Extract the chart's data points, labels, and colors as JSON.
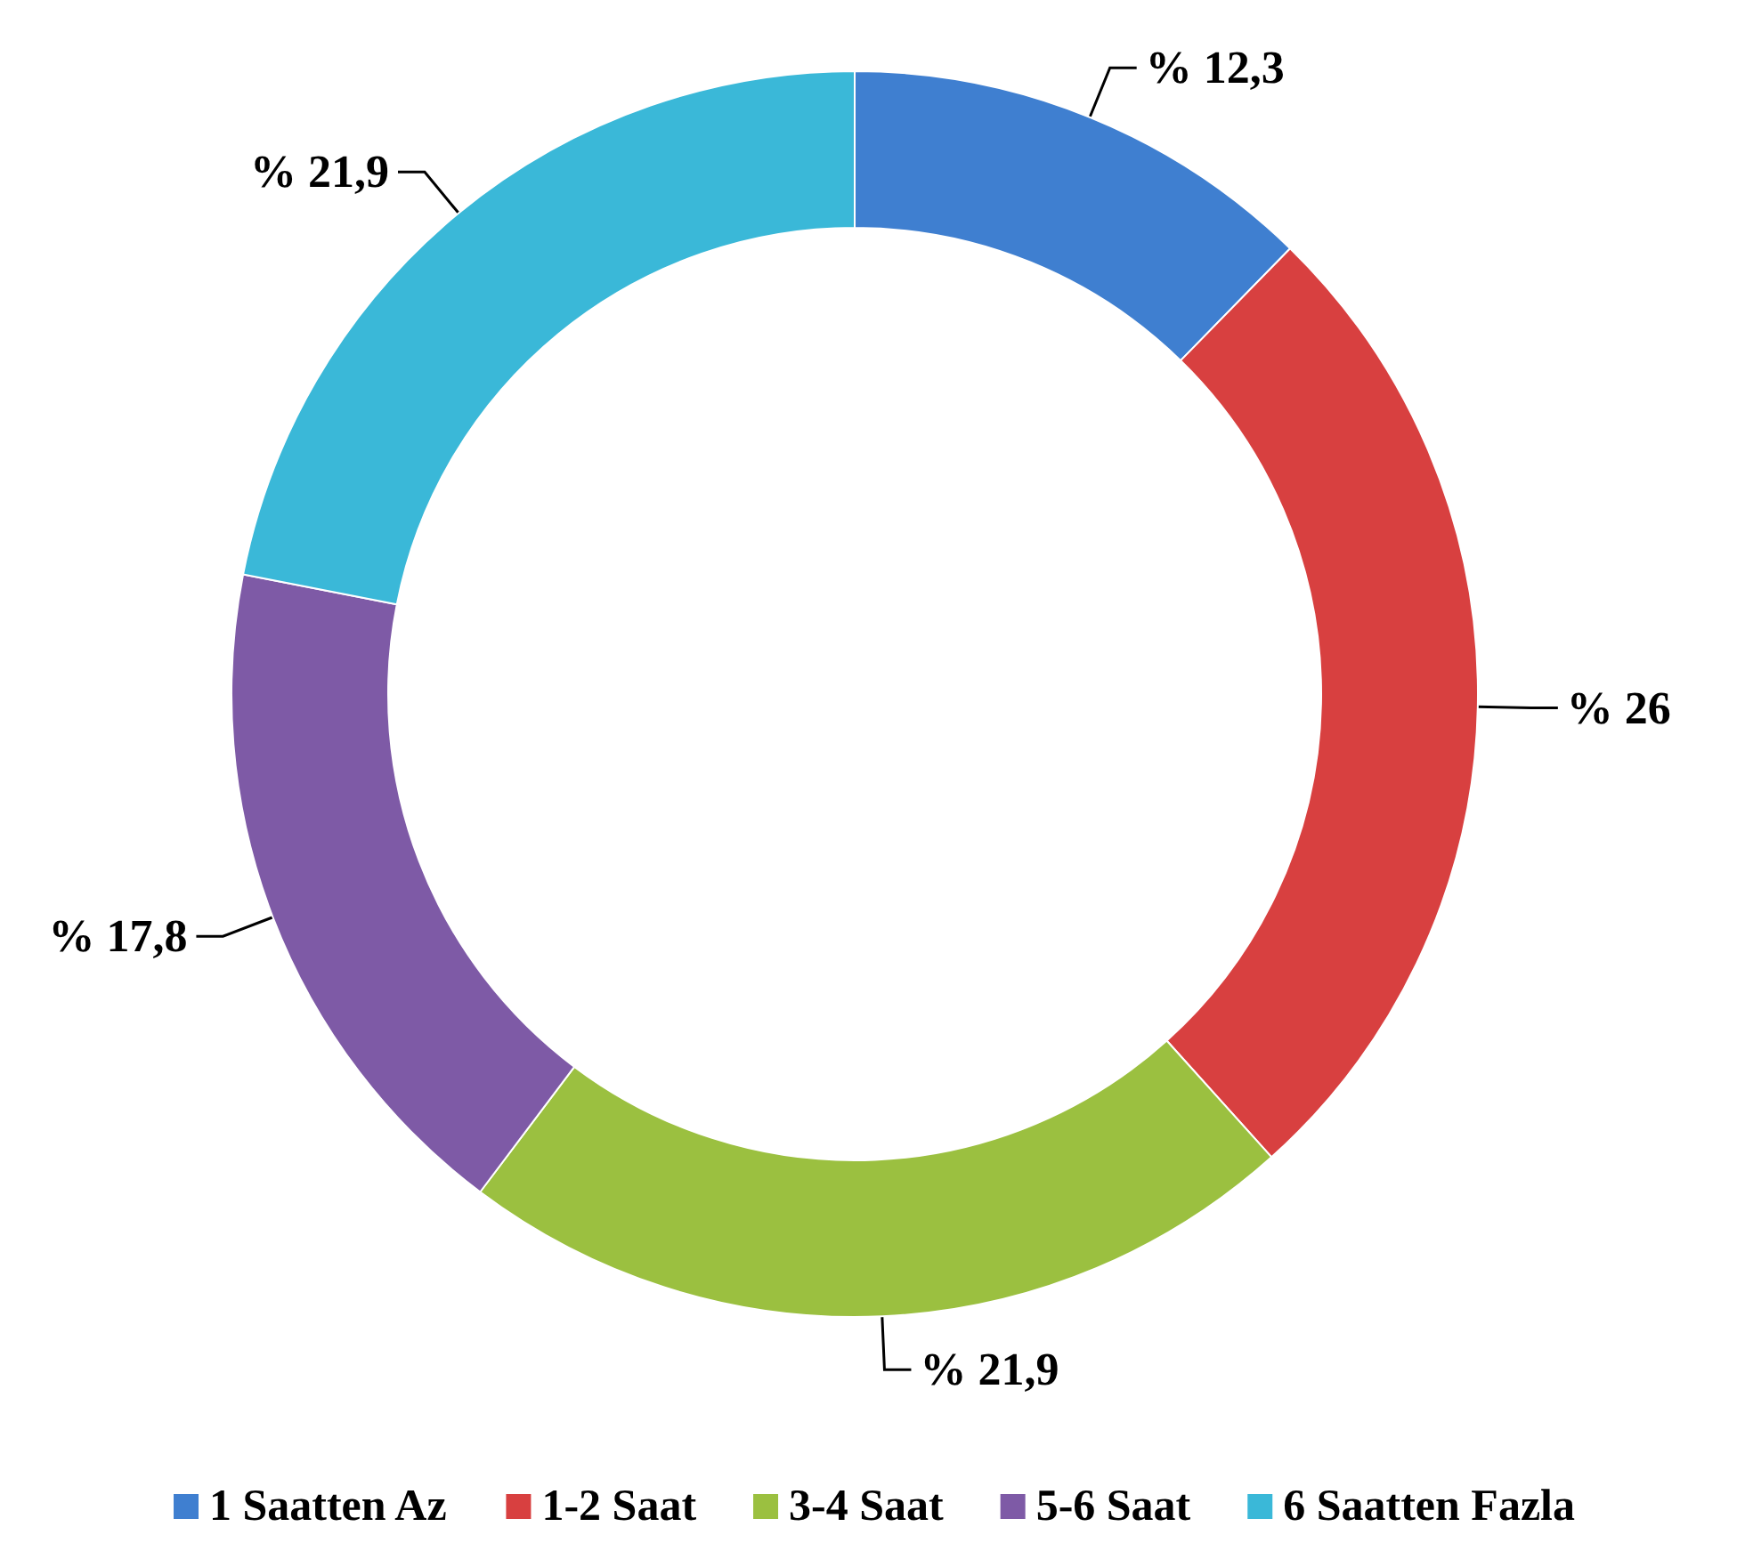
{
  "chart_data": {
    "type": "donut",
    "categories": [
      "1 Saatten Az",
      "1-2 Saat",
      "3-4 Saat",
      "5-6 Saat",
      "6 Saatten Fazla"
    ],
    "values": [
      12.3,
      26,
      21.9,
      17.8,
      21.9
    ],
    "colors": [
      "#3f7fd0",
      "#d84040",
      "#9bc040",
      "#7e5aa6",
      "#3ab8d8"
    ],
    "value_labels": [
      "% 12,3",
      "% 26",
      "% 21,9",
      "% 17,8",
      "% 21,9"
    ],
    "legend": "bottom"
  }
}
